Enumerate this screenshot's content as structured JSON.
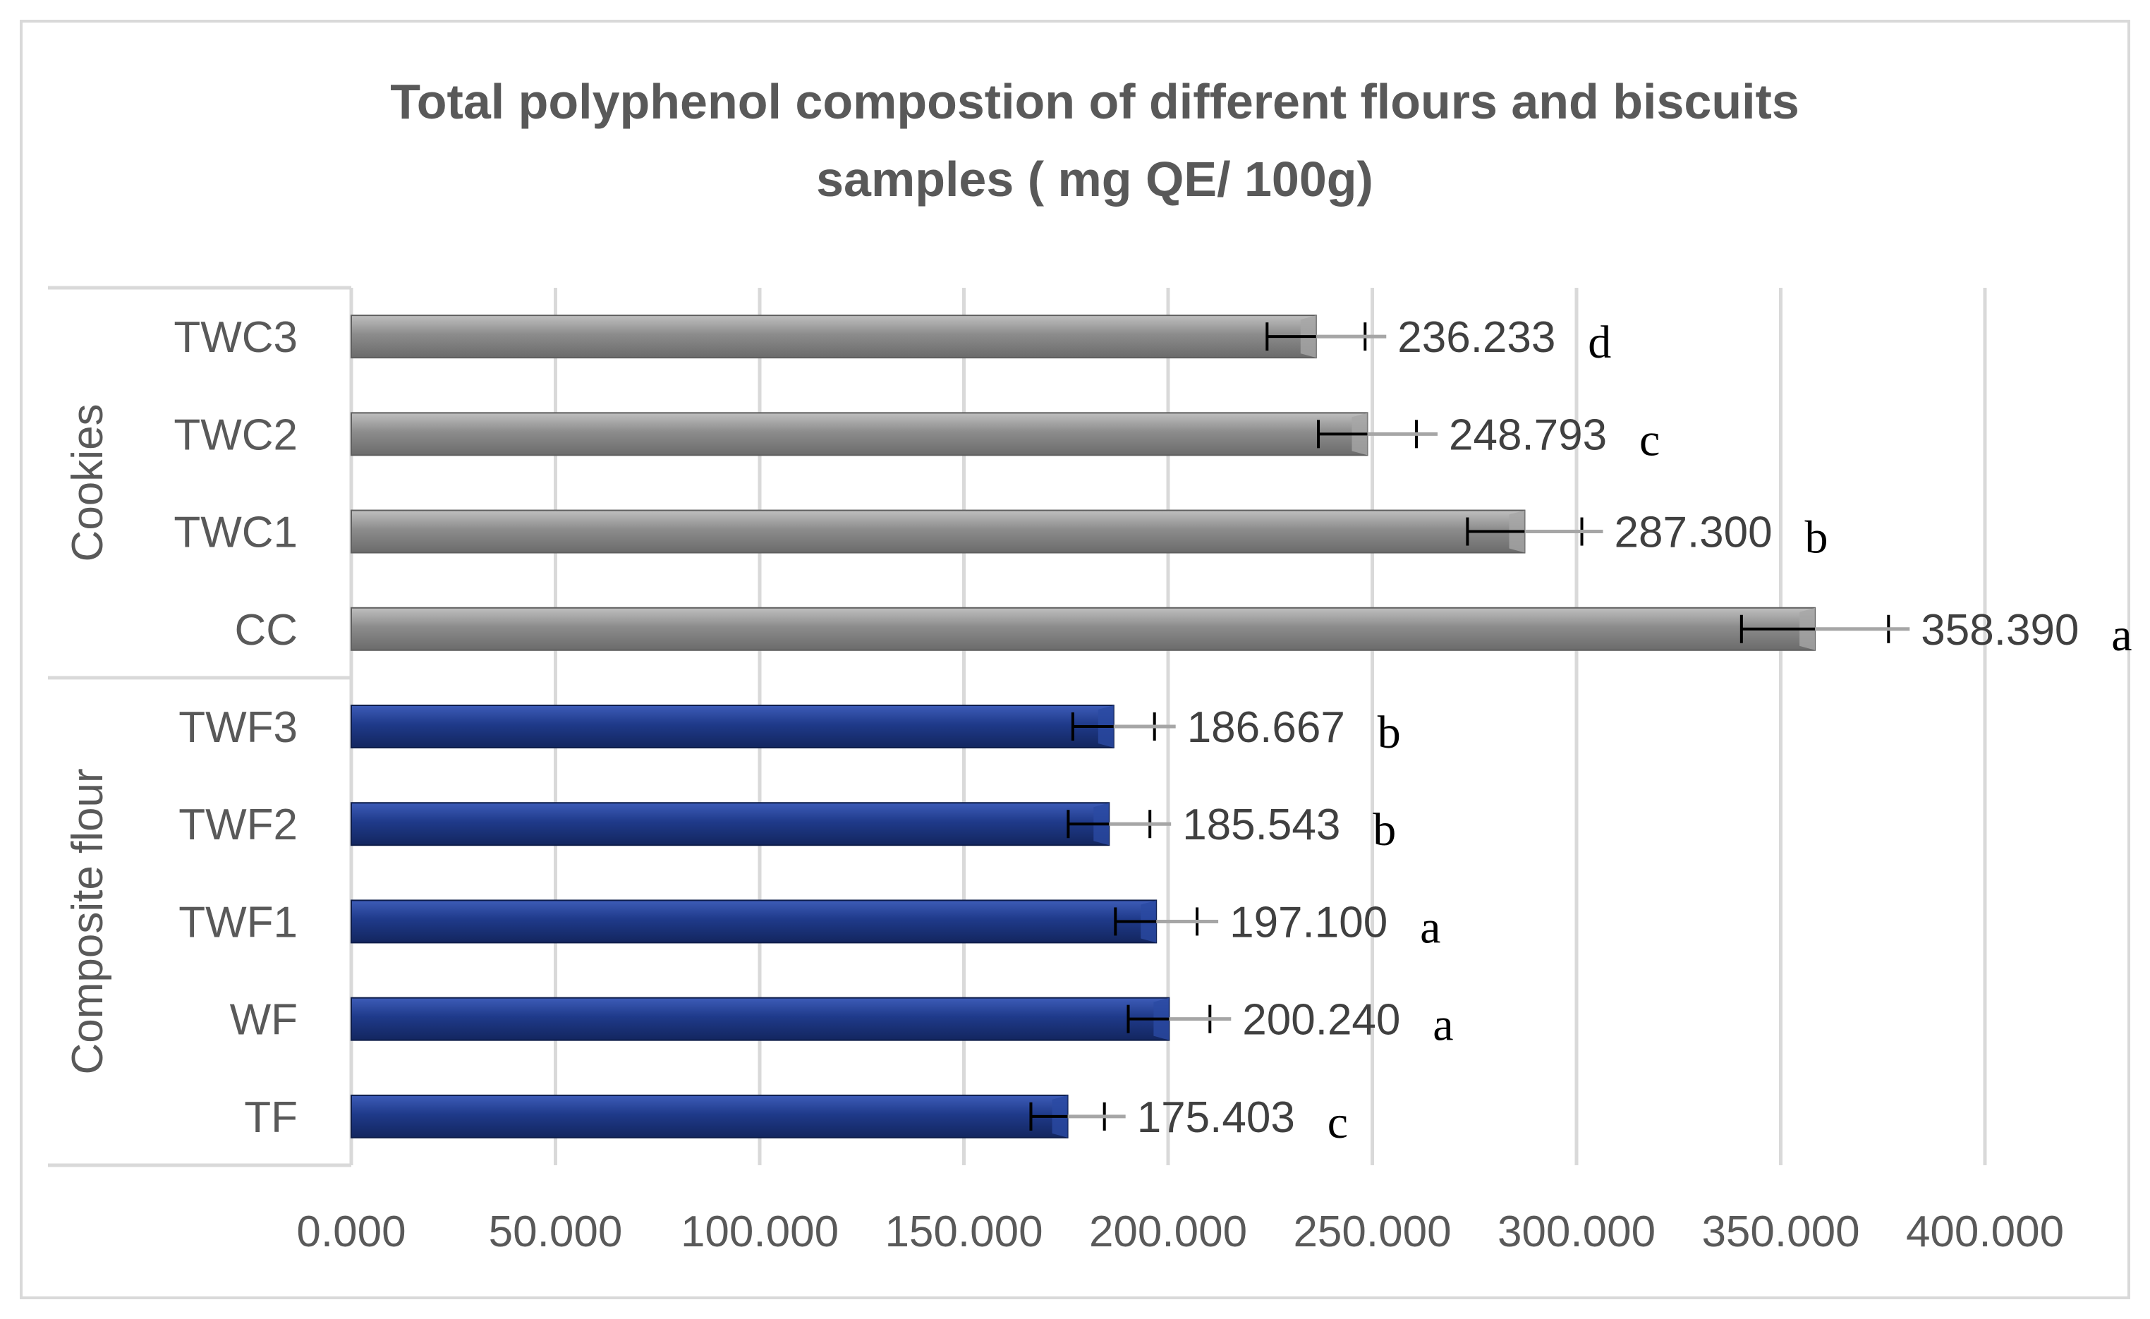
{
  "chart_data": {
    "type": "bar",
    "orientation": "horizontal",
    "title_lines": [
      "Total polyphenol compostion of different flours and biscuits",
      "samples ( mg QE/ 100g)"
    ],
    "xlim": [
      0,
      400
    ],
    "x_ticks": [
      0,
      50,
      100,
      150,
      200,
      250,
      300,
      350,
      400
    ],
    "x_tick_labels": [
      "0.000",
      "50.000",
      "100.000",
      "150.000",
      "200.000",
      "250.000",
      "300.000",
      "350.000",
      "400.000"
    ],
    "grid": "vertical",
    "groups": [
      {
        "name": "Cookies",
        "color": "#8c8c8c",
        "categories": [
          "TWC3",
          "TWC2",
          "TWC1",
          "CC"
        ],
        "values": [
          236.233,
          248.793,
          287.3,
          358.39
        ],
        "value_labels": [
          "236.233",
          "248.793",
          "287.300",
          "358.390"
        ],
        "error_minus": [
          12,
          12,
          14,
          18
        ],
        "error_plus": [
          12,
          12,
          14,
          18
        ],
        "significance": [
          "d",
          "c",
          "b",
          "a"
        ]
      },
      {
        "name": "Composite flour",
        "color": "#1f3a8a",
        "categories": [
          "TWF3",
          "TWF2",
          "TWF1",
          "WF",
          "TF"
        ],
        "values": [
          186.667,
          185.543,
          197.1,
          200.24,
          175.403
        ],
        "value_labels": [
          "186.667",
          "185.543",
          "197.100",
          "200.240",
          "175.403"
        ],
        "error_minus": [
          10,
          10,
          10,
          10,
          9
        ],
        "error_plus": [
          10,
          10,
          10,
          10,
          9
        ],
        "significance": [
          "b",
          "b",
          "a",
          "a",
          "c"
        ]
      }
    ]
  }
}
